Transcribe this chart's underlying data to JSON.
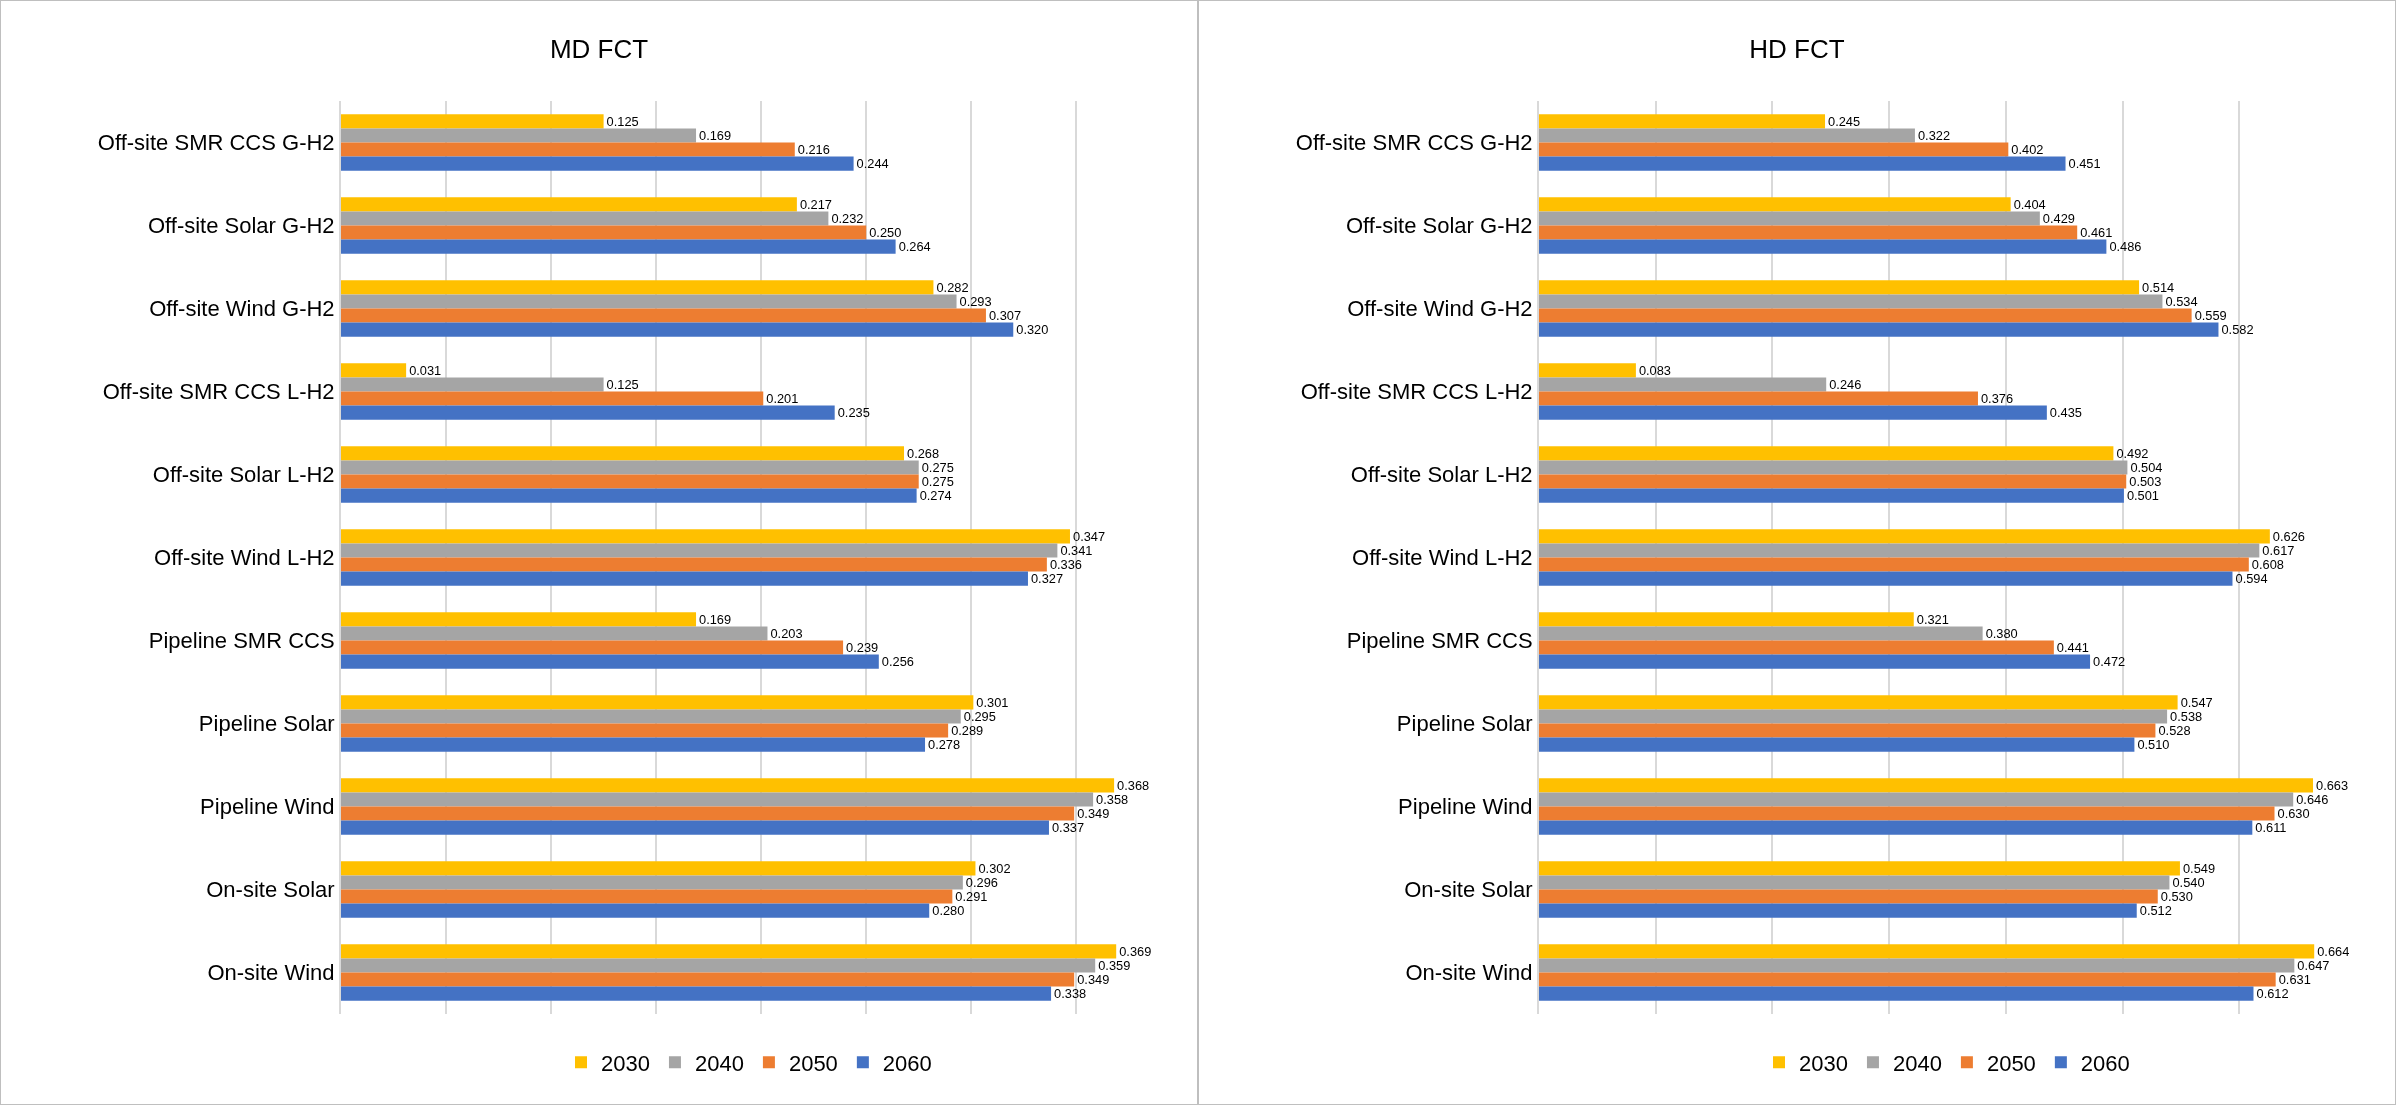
{
  "chart_data": [
    {
      "type": "bar",
      "title": "MD FCT",
      "orientation": "horizontal",
      "categories": [
        "Off-site SMR CCS G-H2",
        "Off-site Solar G-H2",
        "Off-site Wind G-H2",
        "Off-site SMR CCS L-H2",
        "Off-site Solar L-H2",
        "Off-site Wind L-H2",
        "Pipeline SMR CCS",
        "Pipeline Solar",
        "Pipeline Wind",
        "On-site Solar",
        "On-site Wind"
      ],
      "series": [
        {
          "name": "2030",
          "color": "#ffc000",
          "values": [
            0.125,
            0.217,
            0.282,
            0.031,
            0.268,
            0.347,
            0.169,
            0.301,
            0.368,
            0.302,
            0.369
          ],
          "value_labels": [
            "0.125",
            "0.217",
            "0.282",
            "0.031",
            "0.268",
            "0.347",
            "0.169",
            "0.301",
            "0.368",
            "0.302",
            "0.369"
          ]
        },
        {
          "name": "2040",
          "color": "#a5a5a5",
          "values": [
            0.169,
            0.232,
            0.293,
            0.125,
            0.275,
            0.341,
            0.203,
            0.295,
            0.358,
            0.296,
            0.359
          ],
          "value_labels": [
            "0.169",
            "0.232",
            "0.293",
            "0.125",
            "0.275",
            "0.341",
            "0.203",
            "0.295",
            "0.358",
            "0.296",
            "0.359"
          ]
        },
        {
          "name": "2050",
          "color": "#ed7d31",
          "values": [
            0.216,
            0.25,
            0.307,
            0.201,
            0.275,
            0.336,
            0.239,
            0.289,
            0.349,
            0.291,
            0.349
          ],
          "value_labels": [
            "0.216",
            "0.250",
            "0.307",
            "0.201",
            "0.275",
            "0.336",
            "0.239",
            "0.289",
            "0.349",
            "0.291",
            "0.349"
          ]
        },
        {
          "name": "2060",
          "color": "#4472c4",
          "values": [
            0.244,
            0.264,
            0.32,
            0.235,
            0.274,
            0.327,
            0.256,
            0.278,
            0.337,
            0.28,
            0.338
          ],
          "value_labels": [
            "0.244",
            "0.264",
            "0.320",
            "0.235",
            "0.274",
            "0.327",
            "0.256",
            "0.278",
            "0.337",
            "0.280",
            "0.338"
          ]
        }
      ],
      "grid": "x",
      "tick_labels": "y",
      "legend": "bottom"
    },
    {
      "type": "bar",
      "title": "HD FCT",
      "orientation": "horizontal",
      "categories": [
        "Off-site SMR CCS G-H2",
        "Off-site Solar G-H2",
        "Off-site Wind G-H2",
        "Off-site SMR CCS L-H2",
        "Off-site Solar L-H2",
        "Off-site Wind L-H2",
        "Pipeline SMR CCS",
        "Pipeline Solar",
        "Pipeline Wind",
        "On-site Solar",
        "On-site Wind"
      ],
      "series": [
        {
          "name": "2030",
          "color": "#ffc000",
          "values": [
            0.245,
            0.404,
            0.514,
            0.083,
            0.492,
            0.626,
            0.321,
            0.547,
            0.663,
            0.549,
            0.664
          ],
          "value_labels": [
            "0.245",
            "0.404",
            "0.514",
            "0.083",
            "0.492",
            "0.626",
            "0.321",
            "0.547",
            "0.663",
            "0.549",
            "0.664"
          ]
        },
        {
          "name": "2040",
          "color": "#a5a5a5",
          "values": [
            0.322,
            0.429,
            0.534,
            0.246,
            0.504,
            0.617,
            0.38,
            0.538,
            0.646,
            0.54,
            0.647
          ],
          "value_labels": [
            "0.322",
            "0.429",
            "0.534",
            "0.246",
            "0.504",
            "0.617",
            "0.380",
            "0.538",
            "0.646",
            "0.540",
            "0.647"
          ]
        },
        {
          "name": "2050",
          "color": "#ed7d31",
          "values": [
            0.402,
            0.461,
            0.559,
            0.376,
            0.503,
            0.608,
            0.441,
            0.528,
            0.63,
            0.53,
            0.631
          ],
          "value_labels": [
            "0.402",
            "0.461",
            "0.559",
            "0.376",
            "0.503",
            "0.608",
            "0.441",
            "0.528",
            "0.630",
            "0.530",
            "0.631"
          ]
        },
        {
          "name": "2060",
          "color": "#4472c4",
          "values": [
            0.451,
            0.486,
            0.582,
            0.435,
            0.501,
            0.594,
            0.472,
            0.51,
            0.611,
            0.512,
            0.612
          ],
          "value_labels": [
            "0.451",
            "0.486",
            "0.582",
            "0.435",
            "0.501",
            "0.594",
            "0.472",
            "0.510",
            "0.611",
            "0.512",
            "0.612"
          ]
        }
      ],
      "grid": "x",
      "tick_labels": "y",
      "legend": "bottom"
    }
  ]
}
